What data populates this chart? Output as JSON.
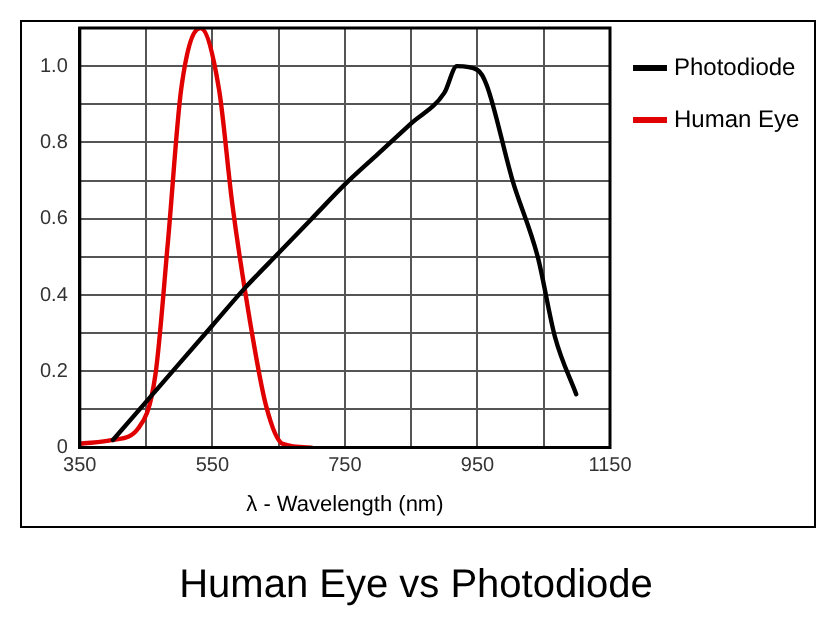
{
  "chart_data": {
    "type": "line",
    "title": "Human Eye vs Photodiode",
    "xlabel": "λ - Wavelength (nm)",
    "xlim": [
      350,
      1150
    ],
    "xticks": [
      350,
      {
        "value": 450,
        "label": null
      },
      550,
      {
        "value": 650,
        "label": null
      },
      750,
      {
        "value": 850,
        "label": null
      },
      950,
      {
        "value": 1050,
        "label": null
      },
      1150
    ],
    "ylim": [
      0,
      1.1
    ],
    "yticks": [
      0,
      {
        "value": 0.1,
        "label": null
      },
      0.2,
      {
        "value": 0.3,
        "label": null
      },
      0.4,
      {
        "value": 0.5,
        "label": null
      },
      0.6,
      {
        "value": 0.7,
        "label": null
      },
      0.8,
      {
        "value": 0.9,
        "label": null
      },
      {
        "value": 1.0,
        "label": "1.0"
      },
      {
        "value": 1.1,
        "label": null
      }
    ],
    "grid": true,
    "legend": "right",
    "marker": "none",
    "line_style": "solid",
    "series": [
      {
        "name": "Photodiode",
        "color": "#000000",
        "x": [
          400,
          450,
          500,
          550,
          600,
          650,
          700,
          750,
          800,
          850,
          900,
          919,
          950,
          964,
          1003,
          1041,
          1067,
          1099
        ],
        "values": [
          0.02,
          0.12,
          0.22,
          0.32,
          0.42,
          0.51,
          0.6,
          0.69,
          0.77,
          0.85,
          0.93,
          1.0,
          0.99,
          0.95,
          0.7,
          0.5,
          0.29,
          0.14
        ]
      },
      {
        "name": "Human Eye",
        "color": "#e00000",
        "x": [
          350,
          400,
          438,
          464,
          483,
          503,
          532,
          560,
          580,
          605,
          631,
          656,
          700
        ],
        "values": [
          0.01,
          0.02,
          0.05,
          0.19,
          0.54,
          0.94,
          1.1,
          0.94,
          0.64,
          0.35,
          0.11,
          0.01,
          0.0
        ]
      }
    ]
  }
}
